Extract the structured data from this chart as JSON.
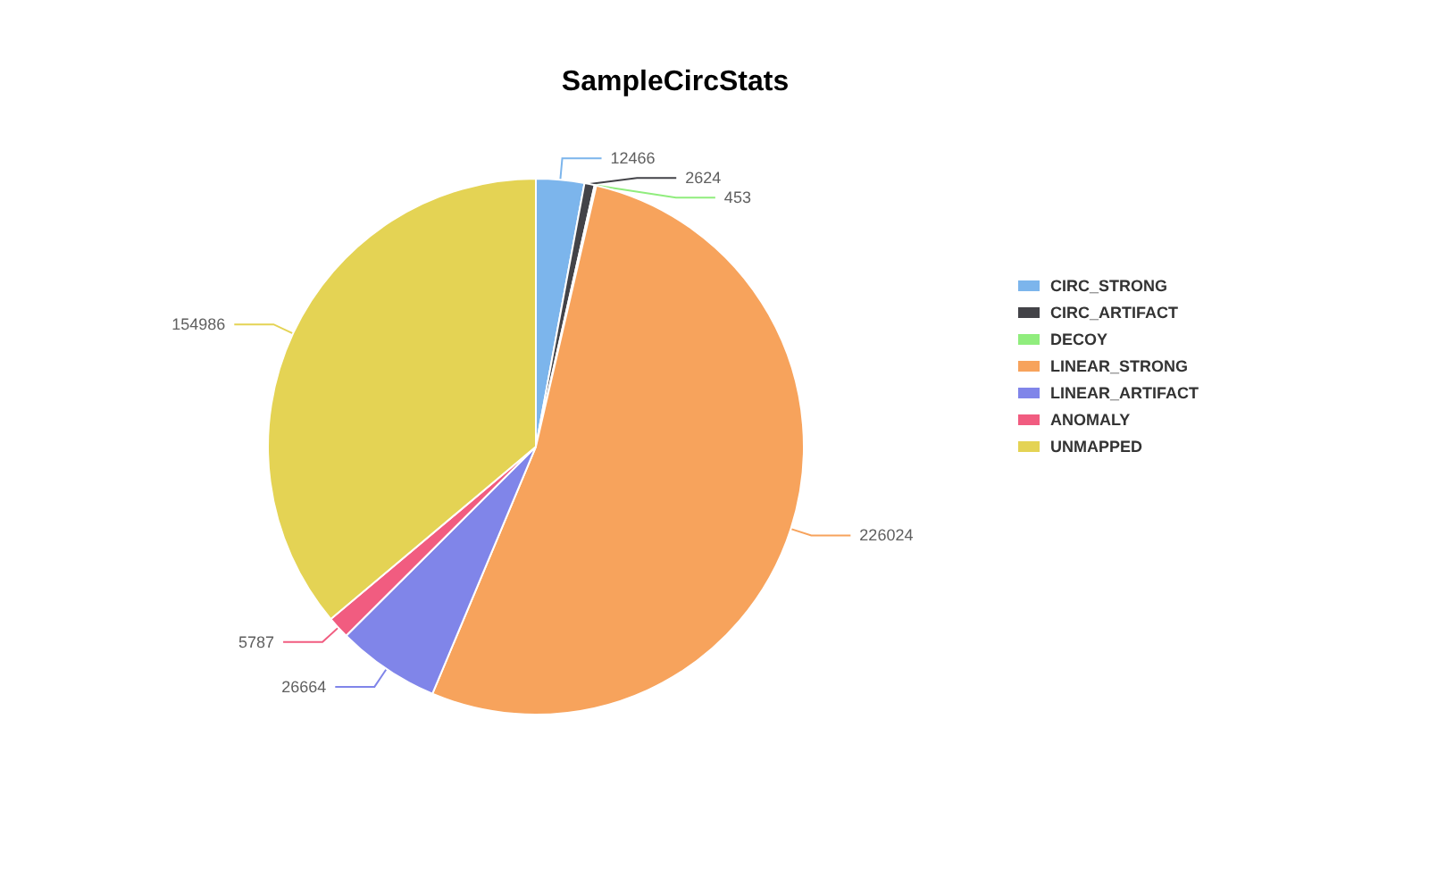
{
  "chart_data": {
    "type": "pie",
    "title": "SampleCircStats",
    "categories": [
      "CIRC_STRONG",
      "CIRC_ARTIFACT",
      "DECOY",
      "LINEAR_STRONG",
      "LINEAR_ARTIFACT",
      "ANOMALY",
      "UNMAPPED"
    ],
    "values": [
      12466,
      2624,
      453,
      226024,
      26664,
      5787,
      154986
    ],
    "colors": [
      "#7cb5ec",
      "#434348",
      "#90ed7d",
      "#f7a35c",
      "#8085e9",
      "#f15c80",
      "#e4d354"
    ],
    "data_labels": true,
    "legend": "right"
  }
}
